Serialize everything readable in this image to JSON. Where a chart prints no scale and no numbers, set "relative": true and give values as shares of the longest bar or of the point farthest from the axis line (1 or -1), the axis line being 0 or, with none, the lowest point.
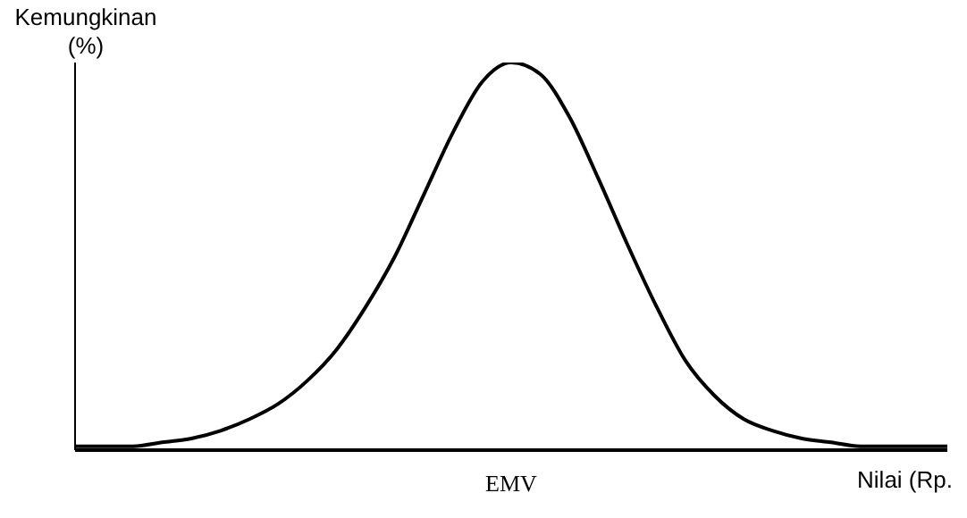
{
  "chart_data": {
    "type": "line",
    "relative": true,
    "ylabel": "Kemungkinan (%)",
    "xlabel": "Nilai (Rp.",
    "categories": [
      null,
      null,
      null,
      null,
      null,
      null,
      null,
      null,
      null,
      null,
      null,
      null,
      null,
      null,
      null,
      null,
      null,
      null,
      null,
      null,
      null,
      null,
      null,
      null,
      null,
      null,
      null,
      null,
      null,
      null,
      null
    ],
    "series": [
      {
        "color": "#000000",
        "values": [
          0.01,
          0.01,
          0.01,
          0.02,
          0.03,
          0.05,
          0.08,
          0.12,
          0.18,
          0.26,
          0.37,
          0.5,
          0.66,
          0.82,
          0.95,
          1.0,
          0.97,
          0.86,
          0.7,
          0.53,
          0.37,
          0.23,
          0.14,
          0.08,
          0.05,
          0.03,
          0.02,
          0.01,
          0.01,
          0.01,
          0.01
        ]
      }
    ],
    "annotations": [
      "EMV"
    ],
    "marker": "none",
    "line_style": "solid",
    "grid": false,
    "legend": false
  }
}
